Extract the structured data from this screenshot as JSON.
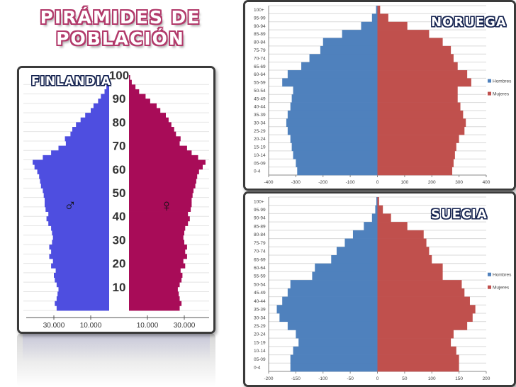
{
  "title": {
    "line1": "PIRÁMIDES DE",
    "line2": "POBLACIÓN"
  },
  "chart_data": [
    {
      "type": "bar",
      "label": "FINLANDIA",
      "ages": [
        0,
        2,
        4,
        6,
        8,
        10,
        12,
        14,
        16,
        18,
        20,
        22,
        24,
        26,
        28,
        30,
        32,
        34,
        36,
        38,
        40,
        42,
        44,
        46,
        48,
        50,
        52,
        54,
        56,
        58,
        60,
        62,
        64,
        66,
        68,
        70,
        72,
        74,
        76,
        78,
        80,
        82,
        84,
        86,
        88,
        90,
        92,
        94,
        96,
        98
      ],
      "male": [
        28500,
        29500,
        28500,
        28000,
        27500,
        28500,
        29500,
        30000,
        29000,
        31500,
        30500,
        32500,
        31500,
        32500,
        31000,
        30500,
        31000,
        31500,
        33000,
        34000,
        33000,
        34500,
        35000,
        35000,
        35500,
        36000,
        37000,
        37500,
        38000,
        39000,
        40500,
        41500,
        36000,
        31500,
        27500,
        23500,
        24000,
        21000,
        20000,
        18000,
        15500,
        13000,
        10000,
        8500,
        6000,
        4500,
        2500,
        1500,
        600,
        200
      ],
      "female": [
        27500,
        28500,
        27500,
        27000,
        26500,
        27500,
        28500,
        29000,
        28000,
        30500,
        29500,
        31500,
        30500,
        31500,
        30000,
        29500,
        30000,
        30500,
        32000,
        33000,
        32000,
        33500,
        34000,
        34000,
        34500,
        35000,
        36000,
        36500,
        37000,
        38000,
        40000,
        41500,
        37500,
        34000,
        31500,
        27500,
        28000,
        25500,
        24500,
        23000,
        21500,
        20000,
        17000,
        15000,
        11500,
        9000,
        5500,
        3500,
        1500,
        600
      ],
      "tick_labels_age": [
        "100",
        "90",
        "80",
        "70",
        "60",
        "50",
        "40",
        "30",
        "20",
        "10"
      ],
      "tick_labels_pop": [
        "30.000",
        "10.000",
        "10.000",
        "30.000"
      ],
      "symbols": {
        "male": "♂",
        "female": "♀"
      },
      "colors": {
        "male": "#4e4ee0",
        "female": "#a80c58"
      }
    },
    {
      "type": "bar",
      "label": "NORUEGA",
      "categories": [
        "100+",
        "95-99",
        "90-94",
        "85-89",
        "80-84",
        "75-79",
        "70-74",
        "65-69",
        "60-64",
        "55-59",
        "50-54",
        "45-49",
        "40-44",
        "35-39",
        "30-34",
        "25-29",
        "20-24",
        "15-19",
        "10-14",
        "05-09",
        "0-4"
      ],
      "hombres": [
        -5,
        -20,
        -60,
        -130,
        -200,
        -210,
        -250,
        -280,
        -330,
        -350,
        -310,
        -315,
        -320,
        -330,
        -335,
        -330,
        -320,
        -315,
        -310,
        -300,
        -295
      ],
      "mujeres": [
        10,
        40,
        110,
        190,
        240,
        270,
        280,
        295,
        330,
        345,
        295,
        295,
        305,
        315,
        325,
        320,
        300,
        290,
        285,
        280,
        275
      ],
      "xticks": [
        "-400",
        "-300",
        "-200",
        "-100",
        "0",
        "100",
        "200",
        "300",
        "400"
      ],
      "xlim": [
        -400,
        400
      ],
      "legend": [
        "Hombres",
        "Mujeres"
      ],
      "colors": {
        "hombres": "#4f81bd",
        "mujeres": "#c0504d"
      }
    },
    {
      "type": "bar",
      "label": "SUECIA",
      "categories": [
        "100+",
        "95-99",
        "90-94",
        "85-89",
        "80-84",
        "75-79",
        "70-74",
        "65-69",
        "60-64",
        "55-59",
        "50-54",
        "45-49",
        "40-44",
        "35-39",
        "30-34",
        "25-29",
        "20-24",
        "15-19",
        "10-14",
        "05-09",
        "0-4"
      ],
      "hombres": [
        -2,
        -4,
        -10,
        -25,
        -45,
        -60,
        -75,
        -85,
        -115,
        -120,
        -160,
        -165,
        -175,
        -185,
        -180,
        -165,
        -150,
        -145,
        -155,
        -160,
        -160
      ],
      "mujeres": [
        3,
        10,
        25,
        55,
        85,
        90,
        95,
        100,
        120,
        120,
        155,
        160,
        170,
        180,
        175,
        165,
        140,
        135,
        145,
        150,
        150
      ],
      "xticks": [
        "-200",
        "-150",
        "-100",
        "-50",
        "0",
        "50",
        "100",
        "150",
        "200"
      ],
      "xlim": [
        -200,
        200
      ],
      "legend": [
        "Hombres",
        "Mujeres"
      ],
      "colors": {
        "hombres": "#4f81bd",
        "mujeres": "#c0504d"
      }
    }
  ]
}
